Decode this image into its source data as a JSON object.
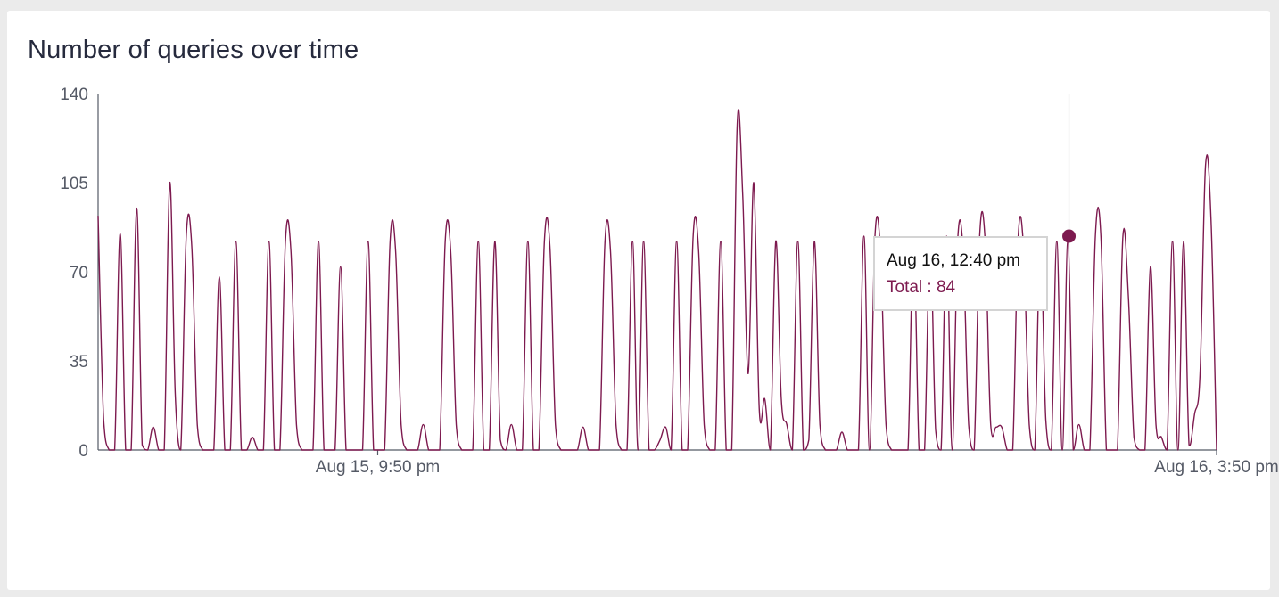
{
  "title": "Number of queries over time",
  "colors": {
    "series": "#7d1a4f",
    "axis": "#555a66",
    "hover_line": "#cccccc"
  },
  "tooltip": {
    "date": "Aug 16, 12:40 pm",
    "total_label": "Total",
    "total_value": 84,
    "total_text": "Total : 84"
  },
  "chart_data": {
    "type": "line",
    "title": "Number of queries over time",
    "xlabel": "",
    "ylabel": "",
    "ylim": [
      0,
      140
    ],
    "yticks": [
      "0",
      "35",
      "70",
      "105",
      "140"
    ],
    "xrange": [
      "Aug 15, 3:50 pm",
      "Aug 16, 3:50 pm"
    ],
    "xticks": [
      "Aug 15, 9:50 pm",
      "Aug 16, 3:50 pm"
    ],
    "grid": false,
    "legend": "none",
    "highlight": {
      "x": "Aug 16, 12:40 pm",
      "y": 84
    },
    "series": [
      {
        "values": [
          92,
          12,
          0,
          0,
          85,
          0,
          0,
          95,
          2,
          0,
          9,
          0,
          0,
          105,
          22,
          0,
          84,
          80,
          10,
          0,
          0,
          0,
          68,
          0,
          0,
          82,
          0,
          0,
          5,
          0,
          0,
          82,
          0,
          0,
          82,
          78,
          10,
          0,
          0,
          0,
          82,
          0,
          0,
          0,
          72,
          0,
          0,
          0,
          0,
          82,
          0,
          0,
          0,
          82,
          78,
          10,
          0,
          0,
          0,
          10,
          0,
          0,
          0,
          82,
          78,
          10,
          0,
          0,
          0,
          82,
          0,
          0,
          82,
          4,
          0,
          10,
          0,
          0,
          82,
          0,
          0,
          82,
          80,
          10,
          0,
          0,
          0,
          0,
          9,
          0,
          0,
          0,
          82,
          78,
          10,
          0,
          0,
          82,
          0,
          82,
          0,
          0,
          4,
          9,
          0,
          82,
          0,
          0,
          84,
          78,
          10,
          0,
          0,
          82,
          0,
          0,
          128,
          100,
          30,
          105,
          16,
          20,
          0,
          82,
          20,
          10,
          0,
          82,
          0,
          4,
          82,
          10,
          0,
          0,
          0,
          7,
          0,
          0,
          0,
          84,
          0,
          84,
          78,
          10,
          0,
          0,
          0,
          0,
          82,
          0,
          0,
          82,
          8,
          0,
          84,
          0,
          82,
          78,
          10,
          0,
          84,
          82,
          10,
          9,
          9,
          0,
          0,
          84,
          78,
          10,
          0,
          82,
          12,
          0,
          82,
          0,
          82,
          0,
          10,
          0,
          0,
          84,
          84,
          0,
          0,
          0,
          84,
          60,
          5,
          0,
          0,
          72,
          10,
          5,
          0,
          82,
          0,
          82,
          2,
          14,
          30,
          112,
          90,
          0
        ]
      }
    ]
  }
}
